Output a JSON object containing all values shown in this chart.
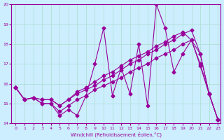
{
  "xlabel": "Windchill (Refroidissement éolien,°C)",
  "ylabel": "",
  "bg_color": "#cceeff",
  "grid_color": "#aaddcc",
  "line_color": "#990099",
  "xlim": [
    0,
    23
  ],
  "ylim": [
    14,
    20
  ],
  "xticks": [
    0,
    1,
    2,
    3,
    4,
    5,
    6,
    7,
    8,
    9,
    10,
    11,
    12,
    13,
    14,
    15,
    16,
    17,
    18,
    19,
    20,
    21,
    22,
    23
  ],
  "yticks": [
    14,
    15,
    16,
    17,
    18,
    19,
    20
  ],
  "line1_x": [
    0,
    1,
    2,
    3,
    4,
    5,
    6,
    7,
    8,
    9,
    10,
    11,
    12,
    13,
    14,
    15,
    16,
    17,
    18,
    19,
    20,
    21,
    22,
    23
  ],
  "line1_y": [
    15.8,
    15.2,
    15.3,
    15.0,
    15.0,
    14.4,
    14.7,
    14.4,
    15.4,
    17.0,
    18.8,
    15.4,
    16.8,
    15.5,
    18.0,
    14.9,
    20.0,
    18.8,
    16.6,
    17.5,
    18.2,
    16.9,
    15.5,
    14.2
  ],
  "line2_x": [
    0,
    1,
    2,
    3,
    4,
    5,
    6,
    7,
    8,
    9,
    10,
    11,
    12,
    13,
    14,
    15,
    16,
    17,
    18,
    19,
    20,
    21,
    22,
    23
  ],
  "line2_y": [
    15.8,
    15.2,
    15.3,
    15.2,
    15.2,
    14.9,
    15.2,
    15.5,
    15.7,
    15.9,
    16.2,
    16.4,
    16.7,
    17.0,
    17.2,
    17.5,
    17.7,
    18.0,
    18.2,
    18.5,
    18.7,
    17.5,
    15.5,
    14.2
  ],
  "line3_x": [
    0,
    1,
    2,
    3,
    4,
    5,
    6,
    7,
    8,
    9,
    10,
    11,
    12,
    13,
    14,
    15,
    16,
    17,
    18,
    19,
    20,
    21,
    22,
    23
  ],
  "line3_y": [
    15.8,
    15.2,
    15.3,
    15.2,
    15.2,
    14.9,
    15.2,
    15.6,
    15.8,
    16.1,
    16.4,
    16.6,
    16.9,
    17.2,
    17.4,
    17.6,
    17.9,
    18.1,
    18.4,
    18.6,
    18.2,
    17.5,
    15.5,
    14.2
  ],
  "line4_x": [
    0,
    1,
    2,
    3,
    4,
    5,
    6,
    7,
    8,
    9,
    10,
    11,
    12,
    13,
    14,
    15,
    16,
    17,
    18,
    19,
    20,
    21,
    22,
    23
  ],
  "line4_y": [
    15.8,
    15.2,
    15.3,
    15.0,
    15.0,
    14.6,
    14.9,
    15.2,
    15.4,
    15.7,
    15.9,
    16.1,
    16.3,
    16.6,
    16.8,
    17.0,
    17.3,
    17.5,
    17.7,
    18.0,
    18.2,
    17.0,
    15.5,
    14.2
  ]
}
